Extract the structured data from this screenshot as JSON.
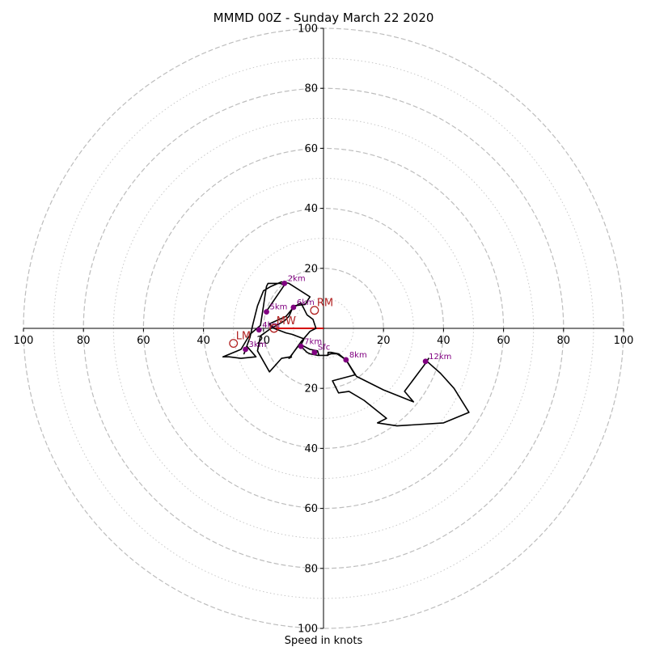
{
  "chart_data": {
    "type": "scatter",
    "title": "MMMD 00Z - Sunday March 22 2020",
    "xlabel": "Speed in knots",
    "ylabel": "",
    "xlim": [
      -100,
      100
    ],
    "ylim": [
      -100,
      100
    ],
    "units": "knots",
    "major_rings": [
      20,
      40,
      60,
      80,
      100
    ],
    "minor_rings": [
      10,
      30,
      50,
      70,
      90
    ],
    "x_tick_labels": [
      "100",
      "80",
      "60",
      "40",
      "20",
      "20",
      "40",
      "60",
      "80",
      "100"
    ],
    "x_tick_values": [
      -100,
      -80,
      -60,
      -40,
      -20,
      20,
      40,
      60,
      80,
      100
    ],
    "y_tick_labels": [
      "100",
      "80",
      "60",
      "40",
      "20",
      "20",
      "40",
      "60",
      "80",
      "100"
    ],
    "y_tick_values": [
      100,
      80,
      60,
      40,
      20,
      -20,
      -40,
      -60,
      -80,
      -100
    ],
    "hodograph": {
      "color": "#000000",
      "points": [
        [
          -10.5,
          -9.5
        ],
        [
          -11.5,
          -10
        ],
        [
          -8.5,
          -6
        ],
        [
          -7,
          -6.5
        ],
        [
          -5.5,
          -8
        ],
        [
          -4.5,
          -8.5
        ],
        [
          -2,
          -9
        ],
        [
          1,
          -9
        ],
        [
          2.5,
          -8.5
        ],
        [
          4.5,
          -8.5
        ],
        [
          6,
          -9.5
        ],
        [
          7.5,
          -10.5
        ],
        [
          10.5,
          -15.5
        ],
        [
          3,
          -17.5
        ],
        [
          5,
          -21.5
        ],
        [
          8.5,
          -21
        ],
        [
          13.5,
          -24
        ],
        [
          21,
          -30
        ],
        [
          18,
          -31.5
        ],
        [
          24.5,
          -32.5
        ],
        [
          40,
          -31.5
        ],
        [
          48.5,
          -28
        ],
        [
          43.5,
          -20
        ],
        [
          39,
          -15
        ],
        [
          34.5,
          -11
        ],
        [
          35,
          -10
        ],
        [
          34.5,
          -11
        ],
        [
          27,
          -21
        ],
        [
          30,
          -24.5
        ],
        [
          20,
          -20.5
        ],
        [
          11,
          -16
        ],
        [
          8.5,
          -12
        ],
        [
          7.5,
          -10.5
        ],
        [
          5,
          -8.5
        ],
        [
          2.5,
          -8
        ],
        [
          1.5,
          -8
        ],
        [
          1.5,
          -9
        ],
        [
          -1.5,
          -9
        ],
        [
          -2,
          -7.5
        ],
        [
          -4.5,
          -7
        ],
        [
          -7.5,
          -5.5
        ],
        [
          -6.5,
          -3.5
        ],
        [
          -10.5,
          -2
        ],
        [
          -12.5,
          -1.5
        ],
        [
          -16.5,
          0
        ],
        [
          -18,
          1.5
        ],
        [
          -12.5,
          4
        ],
        [
          -10,
          7
        ],
        [
          -7.5,
          8.5
        ],
        [
          -5.5,
          4.5
        ],
        [
          -3.5,
          3
        ],
        [
          -2.5,
          0
        ],
        [
          -4.5,
          -1
        ],
        [
          -7.5,
          -4.5
        ],
        [
          -10,
          -8
        ],
        [
          -11,
          -9.5
        ],
        [
          -14,
          -10
        ],
        [
          -18,
          -14.5
        ],
        [
          -22,
          -7.5
        ],
        [
          -21,
          -2.5
        ],
        [
          -17.5,
          0
        ],
        [
          -16.5,
          0.5
        ],
        [
          -13,
          2.5
        ],
        [
          -11.5,
          4
        ],
        [
          -10,
          7.5
        ],
        [
          -6,
          8
        ],
        [
          -5.5,
          9
        ],
        [
          -4.5,
          10.5
        ],
        [
          -11.5,
          15
        ],
        [
          -14,
          15.5
        ],
        [
          -17.5,
          14
        ],
        [
          -20,
          12.5
        ],
        [
          -22,
          7.5
        ],
        [
          -23.5,
          1.5
        ],
        [
          -24.5,
          -3
        ],
        [
          -26.5,
          -8.5
        ],
        [
          -25.5,
          -6
        ],
        [
          -22.5,
          -9.5
        ],
        [
          -27.5,
          -10
        ],
        [
          -31.5,
          -9.5
        ],
        [
          -33.5,
          -9.5
        ],
        [
          -27.5,
          -7
        ],
        [
          -24.5,
          -2
        ],
        [
          -21,
          1
        ],
        [
          -20,
          7.5
        ],
        [
          -19.5,
          11
        ],
        [
          -19,
          14
        ],
        [
          -18.5,
          15
        ],
        [
          -17,
          15
        ],
        [
          -14.5,
          15
        ],
        [
          -13,
          14.5
        ],
        [
          -19.5,
          5
        ]
      ]
    },
    "height_labels": {
      "color": "#800080",
      "points": [
        {
          "label": "Sfc",
          "x": -3,
          "y": -8
        },
        {
          "label": "2km",
          "x": -13,
          "y": 15
        },
        {
          "label": "3km",
          "x": -26,
          "y": -7
        },
        {
          "label": "4km",
          "x": -21.5,
          "y": -0.5
        },
        {
          "label": "5km",
          "x": -19,
          "y": 5.5
        },
        {
          "label": "6km",
          "x": -10,
          "y": 7
        },
        {
          "label": "7km",
          "x": -7.5,
          "y": -6
        },
        {
          "label": "8km",
          "x": 7.5,
          "y": -10.5
        },
        {
          "label": "12km",
          "x": 34,
          "y": -11
        }
      ]
    },
    "motion_markers": {
      "color": "#b22222",
      "points": [
        {
          "label": "RM",
          "x": -3,
          "y": 6
        },
        {
          "label": "LM",
          "x": -30,
          "y": -5
        },
        {
          "label": "MW",
          "x": -16.5,
          "y": 0
        }
      ]
    },
    "shear_vector": {
      "color": "#d40000",
      "from": [
        -16.5,
        0
      ],
      "to": [
        0,
        0
      ]
    }
  }
}
